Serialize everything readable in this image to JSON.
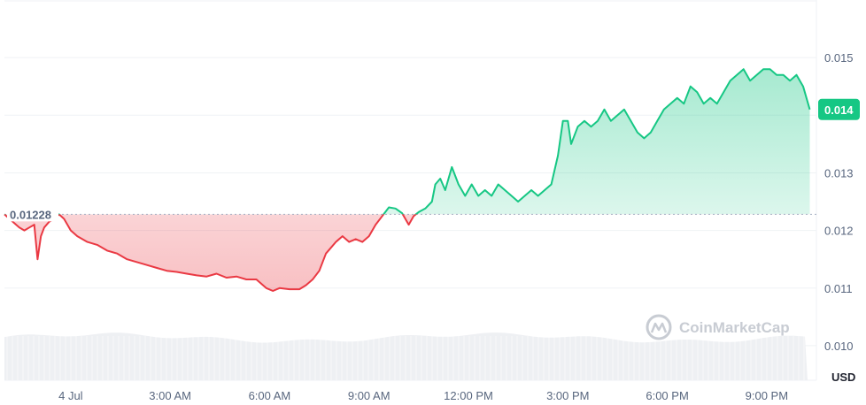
{
  "chart_data": {
    "type": "area",
    "title": "",
    "xlabel": "",
    "ylabel": "",
    "unit_label": "USD",
    "ylim": [
      0.0094,
      0.016
    ],
    "xlim": [
      0,
      24.5
    ],
    "y_ticks": [
      "0.010",
      "0.011",
      "0.012",
      "0.013",
      "0.014",
      "0.015"
    ],
    "y_tick_values": [
      0.01,
      0.011,
      0.012,
      0.013,
      0.014,
      0.015
    ],
    "x_ticks": [
      {
        "label": "4 Jul",
        "hour": 2
      },
      {
        "label": "3:00 AM",
        "hour": 5
      },
      {
        "label": "6:00 AM",
        "hour": 8
      },
      {
        "label": "9:00 AM",
        "hour": 11
      },
      {
        "label": "12:00 PM",
        "hour": 14
      },
      {
        "label": "3:00 PM",
        "hour": 17
      },
      {
        "label": "6:00 PM",
        "hour": 20
      },
      {
        "label": "9:00 PM",
        "hour": 23
      }
    ],
    "reference": {
      "value": 0.01228,
      "label": "0.01228"
    },
    "current": {
      "value": 0.0141,
      "label": "0.014"
    },
    "grid": true,
    "colors": {
      "up": "#16c784",
      "down": "#ea3943",
      "grid": "#eff2f5",
      "volume": "#eef0f3",
      "text": "#58667e"
    },
    "watermark": "CoinMarketCap",
    "price_series": {
      "name": "price",
      "points": [
        [
          0.0,
          0.01228
        ],
        [
          0.25,
          0.01215
        ],
        [
          0.45,
          0.01205
        ],
        [
          0.6,
          0.012
        ],
        [
          0.75,
          0.01205
        ],
        [
          0.9,
          0.0121
        ],
        [
          1.0,
          0.0115
        ],
        [
          1.1,
          0.0119
        ],
        [
          1.2,
          0.01205
        ],
        [
          1.35,
          0.01215
        ],
        [
          1.5,
          0.0122
        ],
        [
          1.65,
          0.01228
        ],
        [
          1.8,
          0.0122
        ],
        [
          2.0,
          0.012
        ],
        [
          2.2,
          0.0119
        ],
        [
          2.5,
          0.0118
        ],
        [
          2.8,
          0.01175
        ],
        [
          3.1,
          0.01165
        ],
        [
          3.4,
          0.0116
        ],
        [
          3.7,
          0.0115
        ],
        [
          4.0,
          0.01145
        ],
        [
          4.3,
          0.0114
        ],
        [
          4.6,
          0.01135
        ],
        [
          4.9,
          0.0113
        ],
        [
          5.2,
          0.01128
        ],
        [
          5.5,
          0.01125
        ],
        [
          5.8,
          0.01122
        ],
        [
          6.1,
          0.0112
        ],
        [
          6.4,
          0.01125
        ],
        [
          6.7,
          0.01118
        ],
        [
          7.0,
          0.0112
        ],
        [
          7.3,
          0.01115
        ],
        [
          7.6,
          0.01115
        ],
        [
          7.9,
          0.011
        ],
        [
          8.1,
          0.01095
        ],
        [
          8.3,
          0.011
        ],
        [
          8.6,
          0.01098
        ],
        [
          8.9,
          0.01098
        ],
        [
          9.1,
          0.01105
        ],
        [
          9.3,
          0.01115
        ],
        [
          9.5,
          0.0113
        ],
        [
          9.7,
          0.0116
        ],
        [
          9.85,
          0.0117
        ],
        [
          10.0,
          0.0118
        ],
        [
          10.2,
          0.0119
        ],
        [
          10.4,
          0.0118
        ],
        [
          10.6,
          0.01185
        ],
        [
          10.8,
          0.0118
        ],
        [
          11.0,
          0.0119
        ],
        [
          11.2,
          0.0121
        ],
        [
          11.4,
          0.01225
        ],
        [
          11.6,
          0.0124
        ],
        [
          11.8,
          0.01238
        ],
        [
          12.0,
          0.0123
        ],
        [
          12.2,
          0.0121
        ],
        [
          12.35,
          0.01225
        ],
        [
          12.5,
          0.01232
        ],
        [
          12.7,
          0.01238
        ],
        [
          12.9,
          0.0125
        ],
        [
          13.0,
          0.0128
        ],
        [
          13.15,
          0.0129
        ],
        [
          13.3,
          0.0127
        ],
        [
          13.5,
          0.0131
        ],
        [
          13.7,
          0.0128
        ],
        [
          13.9,
          0.0126
        ],
        [
          14.1,
          0.0128
        ],
        [
          14.3,
          0.0126
        ],
        [
          14.5,
          0.0127
        ],
        [
          14.7,
          0.0126
        ],
        [
          14.9,
          0.0128
        ],
        [
          15.1,
          0.0127
        ],
        [
          15.3,
          0.0126
        ],
        [
          15.5,
          0.0125
        ],
        [
          15.7,
          0.0126
        ],
        [
          15.9,
          0.0127
        ],
        [
          16.1,
          0.0126
        ],
        [
          16.3,
          0.0127
        ],
        [
          16.5,
          0.0128
        ],
        [
          16.7,
          0.0133
        ],
        [
          16.85,
          0.0139
        ],
        [
          17.0,
          0.0139
        ],
        [
          17.1,
          0.0135
        ],
        [
          17.3,
          0.0138
        ],
        [
          17.5,
          0.0139
        ],
        [
          17.7,
          0.0138
        ],
        [
          17.9,
          0.0139
        ],
        [
          18.1,
          0.0141
        ],
        [
          18.3,
          0.0139
        ],
        [
          18.5,
          0.014
        ],
        [
          18.7,
          0.0141
        ],
        [
          18.9,
          0.0139
        ],
        [
          19.1,
          0.0137
        ],
        [
          19.3,
          0.0136
        ],
        [
          19.5,
          0.0137
        ],
        [
          19.7,
          0.0139
        ],
        [
          19.9,
          0.0141
        ],
        [
          20.1,
          0.0142
        ],
        [
          20.3,
          0.0143
        ],
        [
          20.5,
          0.0142
        ],
        [
          20.7,
          0.0145
        ],
        [
          20.9,
          0.0144
        ],
        [
          21.1,
          0.0142
        ],
        [
          21.3,
          0.0143
        ],
        [
          21.5,
          0.0142
        ],
        [
          21.7,
          0.0144
        ],
        [
          21.9,
          0.0146
        ],
        [
          22.1,
          0.0147
        ],
        [
          22.3,
          0.0148
        ],
        [
          22.5,
          0.0146
        ],
        [
          22.7,
          0.0147
        ],
        [
          22.9,
          0.0148
        ],
        [
          23.1,
          0.0148
        ],
        [
          23.3,
          0.0147
        ],
        [
          23.5,
          0.0147
        ],
        [
          23.7,
          0.0146
        ],
        [
          23.9,
          0.0147
        ],
        [
          24.1,
          0.0145
        ],
        [
          24.3,
          0.0141
        ]
      ]
    }
  }
}
